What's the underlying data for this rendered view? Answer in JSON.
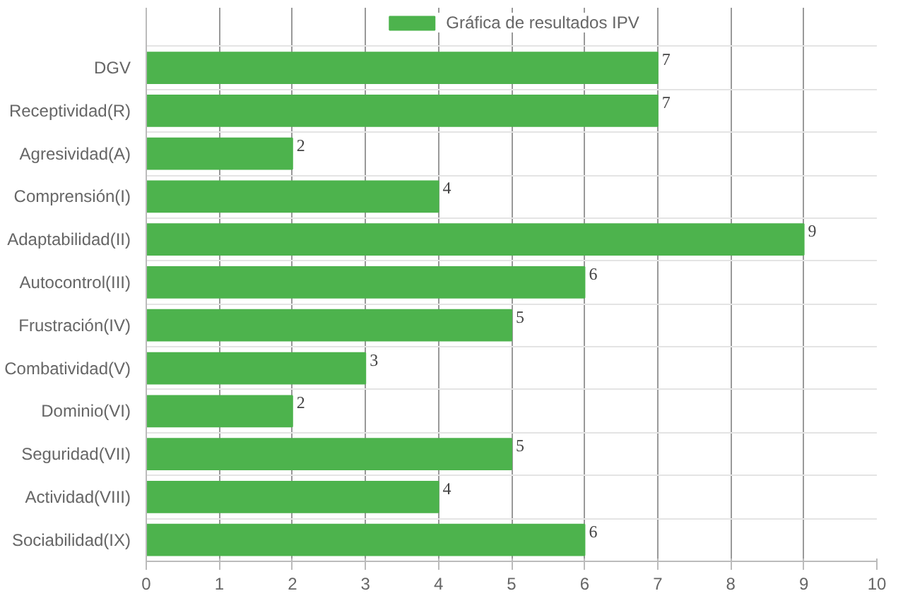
{
  "chart_data": {
    "type": "bar",
    "orientation": "horizontal",
    "categories": [
      "DGV",
      "Receptividad(R)",
      "Agresividad(A)",
      "Comprensión(I)",
      "Adaptabilidad(II)",
      "Autocontrol(III)",
      "Frustración(IV)",
      "Combatividad(V)",
      "Dominio(VI)",
      "Seguridad(VII)",
      "Actividad(VIII)",
      "Sociabilidad(IX)"
    ],
    "series": [
      {
        "name": "Gráfica de resultados IPV",
        "color": "#4db34d",
        "values": [
          7,
          7,
          2,
          4,
          9,
          6,
          5,
          3,
          2,
          5,
          4,
          6
        ]
      }
    ],
    "xlim": [
      0,
      10
    ],
    "xticks": [
      0,
      1,
      2,
      3,
      4,
      5,
      6,
      7,
      8,
      9,
      10
    ],
    "grid": true,
    "legend": "top",
    "data_labels": true
  }
}
